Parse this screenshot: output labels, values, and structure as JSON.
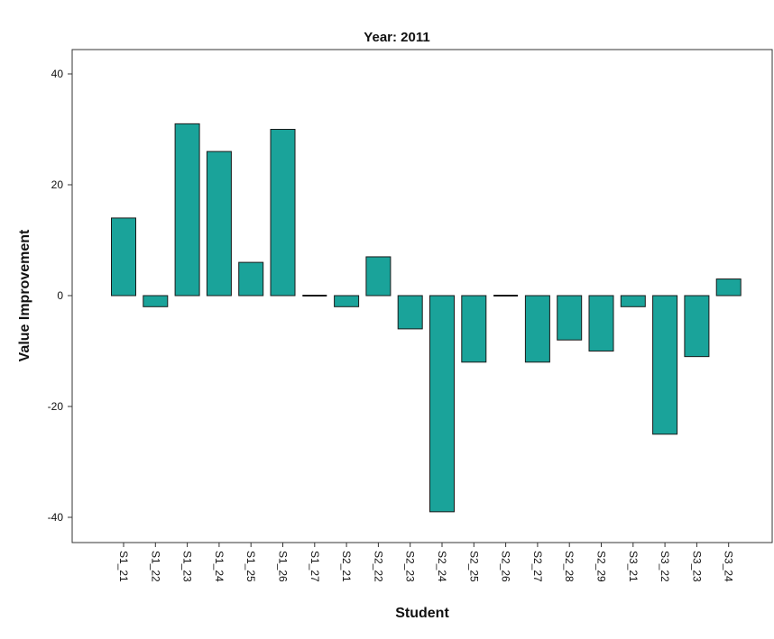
{
  "chart_data": {
    "type": "bar",
    "title": "Year: 2011",
    "xlabel": "Student",
    "ylabel": "Value Improvement",
    "ylim": [
      -45,
      45
    ],
    "yticks": [
      40,
      20,
      0,
      -20,
      -40
    ],
    "grid": false,
    "categories": [
      "S1_21",
      "S1_22",
      "S1_23",
      "S1_24",
      "S1_25",
      "S1_26",
      "S1_27",
      "S2_21",
      "S2_22",
      "S2_23",
      "S2_24",
      "S2_25",
      "S2_26",
      "S2_27",
      "S2_28",
      "S2_29",
      "S3_21",
      "S3_22",
      "S3_23",
      "S3_24"
    ],
    "values": [
      14,
      -2,
      31,
      26,
      6,
      30,
      0,
      -2,
      7,
      -6,
      -39,
      -12,
      0,
      -12,
      -8,
      -10,
      -2,
      -25,
      -11,
      3
    ],
    "colors": {
      "bar_fill": "#1aa39a",
      "bar_stroke": "#1a1a1a",
      "axis": "#333333"
    }
  }
}
